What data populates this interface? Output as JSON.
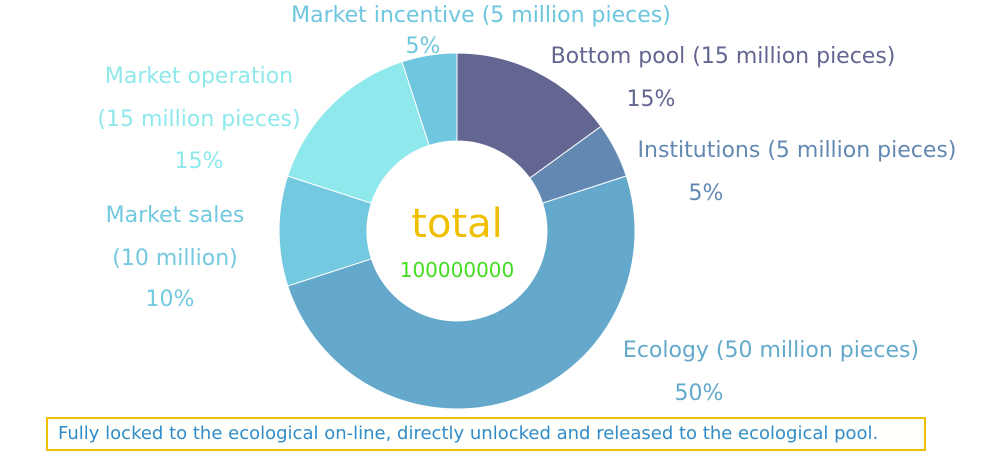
{
  "chart_data": {
    "type": "pie",
    "style": "donut",
    "center_label": "total",
    "center_value": "100000000",
    "legend": "none",
    "slices": [
      {
        "name": "Bottom pool (15 million pieces)",
        "label_lines": [
          "Bottom pool (15 million pieces)"
        ],
        "percent_label": "15%",
        "value": 15,
        "color": "#636691"
      },
      {
        "name": "Institutions (5 million pieces)",
        "label_lines": [
          "Institutions (5 million pieces)"
        ],
        "percent_label": "5%",
        "value": 5,
        "color": "#6389b3"
      },
      {
        "name": "Ecology (50 million pieces)",
        "label_lines": [
          "Ecology (50 million pieces)"
        ],
        "percent_label": "50%",
        "value": 50,
        "color": "#64a9cb"
      },
      {
        "name": "Market sales (10 million)",
        "label_lines": [
          "Market sales",
          "(10 million)"
        ],
        "percent_label": "10%",
        "value": 10,
        "color": "#73c9df"
      },
      {
        "name": "Market operation (15 million pieces)",
        "label_lines": [
          "Market operation",
          "(15 million pieces)"
        ],
        "percent_label": "15%",
        "value": 15,
        "color": "#8fe8eb"
      },
      {
        "name": "Market incentive (5 million pieces)",
        "label_lines": [
          "Market incentive (5 million pieces)"
        ],
        "percent_label": "5%",
        "value": 5,
        "color": "#6ec6df"
      }
    ],
    "center_label_color": "#f0c000",
    "center_value_color": "#44dd22"
  },
  "footnote": "Fully locked to the ecological on-line, directly unlocked and released to the ecological pool."
}
